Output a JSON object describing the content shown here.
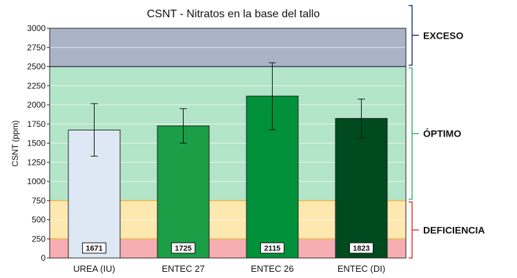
{
  "chart_data": {
    "type": "bar",
    "title": "CSNT - Nitratos en la base del tallo",
    "xlabel": "",
    "ylabel": "CSNT (ppm)",
    "ylim": [
      0,
      3000
    ],
    "yticks": [
      0,
      250,
      500,
      750,
      1000,
      1250,
      1500,
      1750,
      2000,
      2250,
      2500,
      2750,
      3000
    ],
    "categories": [
      "UREA (IU)",
      "ENTEC 27",
      "ENTEC 26",
      "ENTEC (DI)"
    ],
    "values": [
      1671,
      1725,
      2115,
      1823
    ],
    "data_labels": [
      "1671",
      "1725",
      "2115",
      "1823"
    ],
    "error_low": [
      1330,
      1500,
      1675,
      1570
    ],
    "error_high": [
      2015,
      1950,
      2550,
      2075
    ],
    "bar_colors": [
      "#dde8f4",
      "#1a9e46",
      "#00913a",
      "#004a1f"
    ],
    "grid": true,
    "bands": [
      {
        "from": 0,
        "to": 250,
        "color": "#f7aeb3"
      },
      {
        "from": 250,
        "to": 750,
        "color": "#fde8b0"
      },
      {
        "from": 750,
        "to": 2500,
        "color": "#b3e5c9"
      },
      {
        "from": 2500,
        "to": 3000,
        "color": "#aab4c7"
      }
    ],
    "zones": [
      {
        "label": "EXCESO",
        "from": 2500,
        "to": 3000,
        "color": "#1f3a7a"
      },
      {
        "label": "ÓPTIMO",
        "from": 750,
        "to": 2500,
        "color": "#3cb371"
      },
      {
        "label": "DEFICIENCIA",
        "from": 0,
        "to": 750,
        "color": "#e53935"
      }
    ]
  }
}
